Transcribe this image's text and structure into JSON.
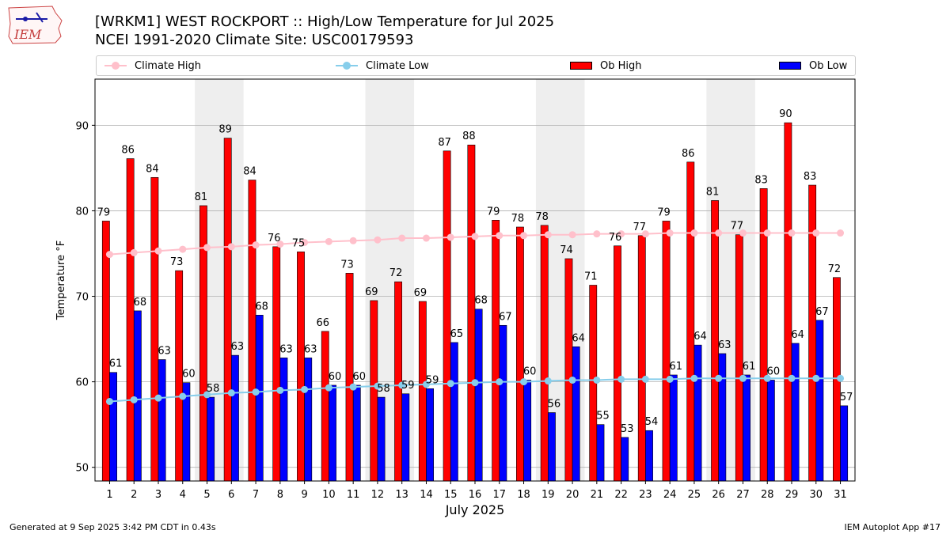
{
  "header": {
    "title_line1": "[WRKM1] WEST ROCKPORT :: High/Low Temperature for Jul 2025",
    "title_line2": "NCEI 1991-2020 Climate Site: USC00179593",
    "logo_text": "IEM"
  },
  "footer": {
    "generated": "Generated at 9 Sep 2025 3:42 PM CDT in 0.43s",
    "app": "IEM Autoplot App #17"
  },
  "colors": {
    "ob_high": "#ff0000",
    "ob_low": "#0000ff",
    "climate_high": "#ffc0cb",
    "climate_low": "#87ceeb",
    "weekend_shade": "#eeeeee",
    "grid": "#b0b0b0"
  },
  "chart_data": {
    "type": "bar",
    "xlabel": "July 2025",
    "ylabel": "Temperature °F",
    "ylim": [
      48.4,
      95.4
    ],
    "yticks": [
      50,
      60,
      70,
      80,
      90
    ],
    "grid": "horizontal",
    "legend_placement": "top",
    "categories": [
      "1",
      "2",
      "3",
      "4",
      "5",
      "6",
      "7",
      "8",
      "9",
      "10",
      "11",
      "12",
      "13",
      "14",
      "15",
      "16",
      "17",
      "18",
      "19",
      "20",
      "21",
      "22",
      "23",
      "24",
      "25",
      "26",
      "27",
      "28",
      "29",
      "30",
      "31"
    ],
    "weekend_spans": [
      [
        5,
        6
      ],
      [
        12,
        13
      ],
      [
        19,
        20
      ],
      [
        26,
        27
      ]
    ],
    "legend": [
      "Climate High",
      "Climate Low",
      "Ob High",
      "Ob Low"
    ],
    "series": [
      {
        "name": "Ob High",
        "type": "bar",
        "values": [
          78.8,
          86.1,
          83.9,
          73.0,
          80.6,
          88.5,
          83.6,
          75.8,
          75.2,
          65.9,
          72.7,
          69.5,
          71.7,
          69.4,
          87.0,
          87.7,
          78.9,
          78.1,
          78.3,
          74.4,
          71.3,
          75.9,
          77.1,
          78.8,
          85.7,
          81.2,
          77.2,
          82.6,
          90.3,
          83.0,
          72.2
        ],
        "labels": [
          "79",
          "86",
          "84",
          "73",
          "81",
          "89",
          "84",
          "76",
          "75",
          "66",
          "73",
          "69",
          "72",
          "69",
          "87",
          "88",
          "79",
          "78",
          "78",
          "74",
          "71",
          "76",
          "77",
          "79",
          "86",
          "81",
          "77",
          "83",
          "90",
          "83",
          "72"
        ]
      },
      {
        "name": "Ob Low",
        "type": "bar",
        "values": [
          61.1,
          68.3,
          62.6,
          59.9,
          58.2,
          63.1,
          67.8,
          62.8,
          62.8,
          59.6,
          59.6,
          58.2,
          58.6,
          59.2,
          64.6,
          68.5,
          66.6,
          60.2,
          56.4,
          64.1,
          55.0,
          53.5,
          54.3,
          60.8,
          64.3,
          63.3,
          60.8,
          60.2,
          64.5,
          67.2,
          57.2
        ],
        "labels": [
          "61",
          "68",
          "63",
          "60",
          "58",
          "63",
          "68",
          "63",
          "63",
          "60",
          "60",
          "58",
          "59",
          "59",
          "65",
          "68",
          "67",
          "60",
          "56",
          "64",
          "55",
          "53",
          "54",
          "61",
          "64",
          "63",
          "61",
          "60",
          "64",
          "67",
          "57"
        ]
      },
      {
        "name": "Climate High",
        "type": "line",
        "values": [
          74.9,
          75.1,
          75.3,
          75.5,
          75.7,
          75.8,
          76.0,
          76.1,
          76.3,
          76.4,
          76.5,
          76.6,
          76.8,
          76.8,
          76.9,
          77.0,
          77.1,
          77.1,
          77.2,
          77.2,
          77.3,
          77.3,
          77.3,
          77.4,
          77.4,
          77.4,
          77.4,
          77.4,
          77.4,
          77.4,
          77.4
        ]
      },
      {
        "name": "Climate Low",
        "type": "line",
        "values": [
          57.7,
          57.9,
          58.1,
          58.3,
          58.5,
          58.7,
          58.8,
          59.0,
          59.1,
          59.3,
          59.4,
          59.5,
          59.6,
          59.7,
          59.8,
          59.9,
          60.0,
          60.0,
          60.1,
          60.2,
          60.2,
          60.3,
          60.3,
          60.3,
          60.4,
          60.4,
          60.4,
          60.4,
          60.4,
          60.4,
          60.4
        ]
      }
    ]
  }
}
